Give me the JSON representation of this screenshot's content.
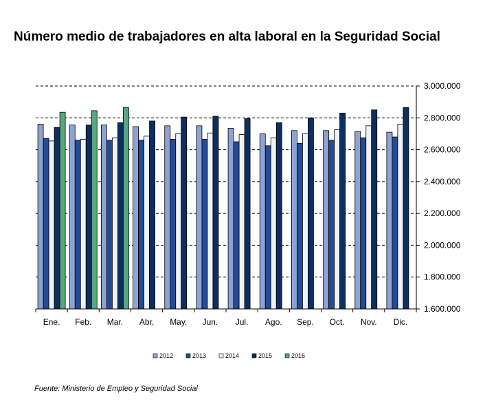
{
  "source": "Fuente: Ministerio de Empleo y Seguridad Social",
  "chart_data": {
    "type": "bar",
    "title": "Número medio de trabajadores en alta laboral en la Seguridad Social",
    "xlabel": "",
    "ylabel": "",
    "ylim": [
      1600000,
      3000000
    ],
    "yticks": [
      1600000,
      1800000,
      2000000,
      2200000,
      2400000,
      2600000,
      2800000,
      3000000
    ],
    "ytick_labels": [
      "1.600.000",
      "1.800.000",
      "2.000.000",
      "2.200.000",
      "2.400.000",
      "2.600.000",
      "2.800.000",
      "3.000.000"
    ],
    "grid": "dashed horizontal",
    "legend_position": "bottom",
    "categories": [
      "Ene.",
      "Feb.",
      "Mar.",
      "Abr.",
      "May.",
      "Jun.",
      "Jul.",
      "Ago.",
      "Sep.",
      "Oct.",
      "Nov.",
      "Dic."
    ],
    "series": [
      {
        "name": "2012",
        "color": "#8ea3d3",
        "values": [
          2760000,
          2755000,
          2755000,
          2745000,
          2750000,
          2750000,
          2735000,
          2700000,
          2720000,
          2720000,
          2715000,
          2710000
        ]
      },
      {
        "name": "2013",
        "color": "#244b95",
        "values": [
          2670000,
          2660000,
          2660000,
          2660000,
          2665000,
          2665000,
          2650000,
          2625000,
          2640000,
          2660000,
          2675000,
          2680000
        ]
      },
      {
        "name": "2014",
        "color": "#eef2fa",
        "values": [
          2655000,
          2665000,
          2675000,
          2685000,
          2700000,
          2705000,
          2695000,
          2675000,
          2700000,
          2725000,
          2750000,
          2760000
        ]
      },
      {
        "name": "2015",
        "color": "#0d2f5e",
        "values": [
          2740000,
          2755000,
          2770000,
          2780000,
          2805000,
          2810000,
          2795000,
          2770000,
          2800000,
          2830000,
          2850000,
          2865000
        ]
      },
      {
        "name": "2016",
        "color": "#5aa77f",
        "values": [
          2835000,
          2845000,
          2865000,
          null,
          null,
          null,
          null,
          null,
          null,
          null,
          null,
          null
        ]
      }
    ]
  }
}
